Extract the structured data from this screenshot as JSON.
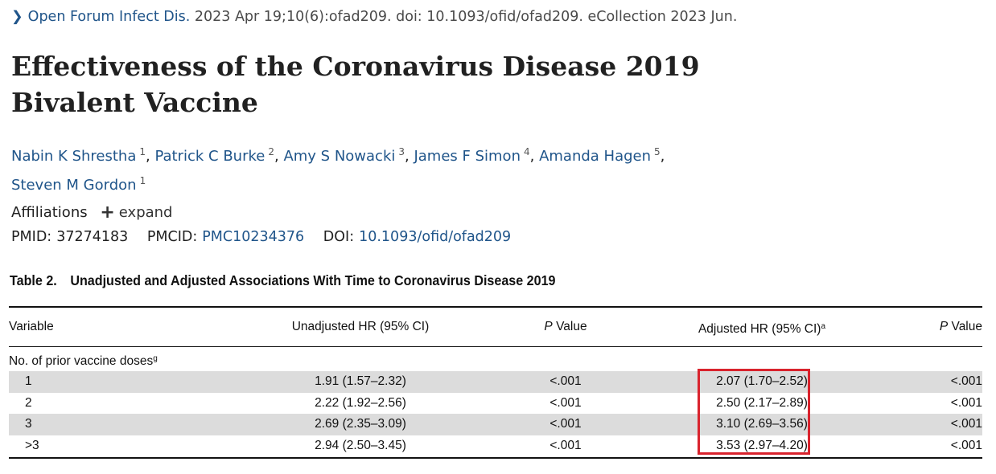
{
  "citation": {
    "journal_link": "Open Forum Infect Dis.",
    "details": "2023 Apr 19;10(6):ofad209. doi: 10.1093/ofid/ofad209. eCollection 2023 Jun."
  },
  "article": {
    "title_line1": "Effectiveness of the Coronavirus Disease 2019",
    "title_line2": "Bivalent Vaccine",
    "authors": [
      {
        "name": "Nabin K Shrestha",
        "aff": "1"
      },
      {
        "name": "Patrick C Burke",
        "aff": "2"
      },
      {
        "name": "Amy S Nowacki",
        "aff": "3"
      },
      {
        "name": "James F Simon",
        "aff": "4"
      },
      {
        "name": "Amanda Hagen",
        "aff": "5"
      },
      {
        "name": "Steven M Gordon",
        "aff": "1"
      }
    ],
    "affiliations_label": "Affiliations",
    "expand_label": "expand",
    "pmid_label": "PMID:",
    "pmid": "37274183",
    "pmcid_label": "PMCID:",
    "pmcid": "PMC10234376",
    "doi_label": "DOI:",
    "doi": "10.1093/ofid/ofad209"
  },
  "table": {
    "caption_num": "Table 2.",
    "caption_text": "Unadjusted and Adjusted Associations With Time to Coronavirus Disease 2019",
    "headers": {
      "variable": "Variable",
      "unadjusted": "Unadjusted HR (95% CI)",
      "p_italic": "P",
      "p_rest": "Value",
      "adjusted": "Adjusted HR (95% CI)",
      "adjusted_sup": "a"
    },
    "group_label": "No. of prior vaccine doses",
    "group_sup": "g",
    "rows": [
      {
        "level": "1",
        "unadjusted": "1.91 (1.57–2.32)",
        "p1": "<.001",
        "adjusted": "2.07 (1.70–2.52)",
        "p2": "<.001"
      },
      {
        "level": "2",
        "unadjusted": "2.22 (1.92–2.56)",
        "p1": "<.001",
        "adjusted": "2.50 (2.17–2.89)",
        "p2": "<.001"
      },
      {
        "level": "3",
        "unadjusted": "2.69 (2.35–3.09)",
        "p1": "<.001",
        "adjusted": "3.10 (2.69–3.56)",
        "p2": "<.001"
      },
      {
        "level": ">3",
        "unadjusted": "2.94 (2.50–3.45)",
        "p1": "<.001",
        "adjusted": "3.53 (2.97–4.20)",
        "p2": "<.001"
      }
    ]
  },
  "colors": {
    "link": "#20558a",
    "highlight_border": "#d9232d",
    "row_shade": "#dcdcdc"
  }
}
